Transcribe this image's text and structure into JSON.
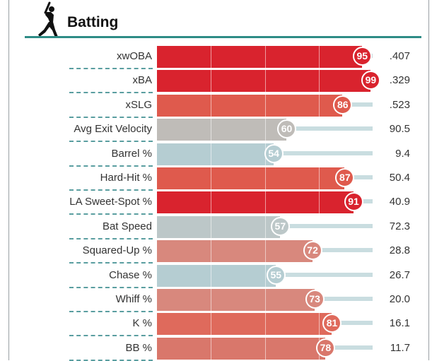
{
  "section": {
    "title": "Batting",
    "icon": "batter-silhouette-icon"
  },
  "scale_max": 100,
  "rows": [
    {
      "label": "xwOBA",
      "percentile": 95,
      "percentile_text": "95",
      "value": ".407",
      "color": "#d9232e"
    },
    {
      "label": "xBA",
      "percentile": 99,
      "percentile_text": "99",
      "value": ".329",
      "color": "#d9232e"
    },
    {
      "label": "xSLG",
      "percentile": 86,
      "percentile_text": "86",
      "value": ".523",
      "color": "#df5a4d"
    },
    {
      "label": "Avg Exit Velocity",
      "percentile": 60,
      "percentile_text": "60",
      "value": "90.5",
      "color": "#bfbcb8"
    },
    {
      "label": "Barrel %",
      "percentile": 54,
      "percentile_text": "54",
      "value": "9.4",
      "color": "#b5cdd2"
    },
    {
      "label": "Hard-Hit %",
      "percentile": 87,
      "percentile_text": "87",
      "value": "50.4",
      "color": "#df5a4d"
    },
    {
      "label": "LA Sweet-Spot %",
      "percentile": 91,
      "percentile_text": "91",
      "value": "40.9",
      "color": "#d9232e"
    },
    {
      "label": "Bat Speed",
      "percentile": 57,
      "percentile_text": "57",
      "value": "72.3",
      "color": "#bcc7c8"
    },
    {
      "label": "Squared-Up %",
      "percentile": 72,
      "percentile_text": "72",
      "value": "28.8",
      "color": "#d8887d"
    },
    {
      "label": "Chase %",
      "percentile": 55,
      "percentile_text": "55",
      "value": "26.7",
      "color": "#b5cdd2"
    },
    {
      "label": "Whiff %",
      "percentile": 73,
      "percentile_text": "73",
      "value": "20.0",
      "color": "#d8887d"
    },
    {
      "label": "K %",
      "percentile": 81,
      "percentile_text": "81",
      "value": "16.1",
      "color": "#df6a5c"
    },
    {
      "label": "BB %",
      "percentile": 78,
      "percentile_text": "78",
      "value": "11.7",
      "color": "#d9776b"
    }
  ]
}
